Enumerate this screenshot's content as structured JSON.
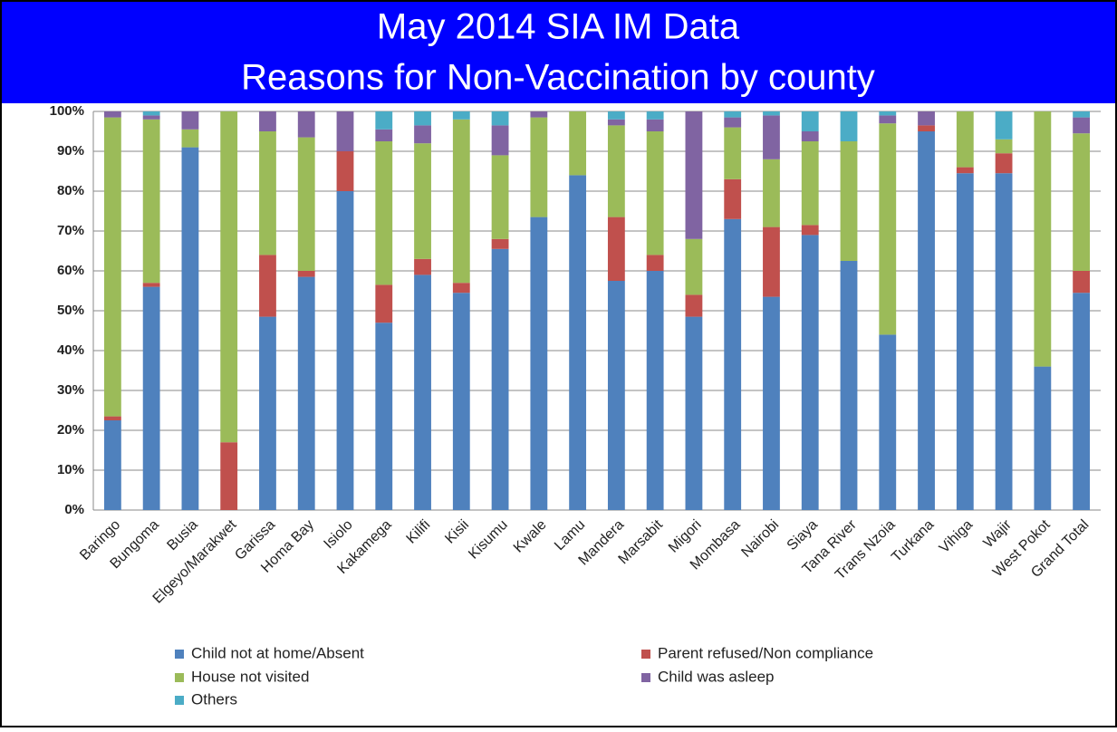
{
  "chart_data": {
    "type": "stacked_bar",
    "title": "May 2014 SIA IM Data",
    "subtitle": "Reasons for Non-Vaccination by county",
    "categories": [
      "Baringo",
      "Bungoma",
      "Busia",
      "Elgeyo/Marakwet",
      "Garissa",
      "Homa Bay",
      "Isiolo",
      "Kakamega",
      "Kilifi",
      "Kisii",
      "Kisumu",
      "Kwale",
      "Lamu",
      "Mandera",
      "Marsabit",
      "Migori",
      "Mombasa",
      "Nairobi",
      "Siaya",
      "Tana River",
      "Trans Nzoia",
      "Turkana",
      "Vihiga",
      "Wajir",
      "West Pokot",
      "Grand Total"
    ],
    "series": [
      {
        "name": "Child not at home/Absent",
        "color": "#4f81bd",
        "values": [
          22.5,
          56,
          91,
          0,
          48.5,
          58.5,
          80,
          47,
          59,
          54.5,
          65.5,
          73.5,
          84,
          57.5,
          60,
          48.5,
          73,
          53.5,
          69,
          62.5,
          44,
          95,
          84.5,
          84.5,
          36,
          54.5
        ]
      },
      {
        "name": "Parent refused/Non compliance",
        "color": "#c0504d",
        "values": [
          1,
          1,
          0,
          17,
          15.5,
          1.5,
          10,
          9.5,
          4,
          2.5,
          2.5,
          0,
          0,
          16,
          4,
          5.5,
          10,
          17.5,
          2.5,
          0,
          0,
          1.5,
          1.5,
          5,
          0,
          5.5
        ]
      },
      {
        "name": "House not visited",
        "color": "#9bbb59",
        "values": [
          75,
          41,
          4.5,
          83,
          31,
          33.5,
          0,
          36,
          29,
          41,
          21,
          25,
          16,
          23,
          31,
          14,
          13,
          17,
          21,
          30,
          53,
          0,
          14,
          3.5,
          64,
          34.5
        ]
      },
      {
        "name": "Child was asleep",
        "color": "#8064a2",
        "values": [
          1.5,
          1,
          4.5,
          0,
          5,
          6.5,
          10,
          3,
          4.5,
          0,
          7.5,
          1.5,
          0,
          1.5,
          3,
          32,
          2.5,
          11,
          2.5,
          0,
          2,
          3.5,
          0,
          0,
          0,
          4
        ]
      },
      {
        "name": "Others",
        "color": "#4bacc6",
        "values": [
          0,
          1,
          0,
          0,
          0,
          0,
          0,
          4.5,
          3.5,
          2,
          3.5,
          0,
          0,
          2,
          2,
          0,
          1.5,
          1,
          5,
          7.5,
          1,
          0,
          0,
          7,
          0,
          1.5
        ]
      }
    ],
    "ylim": [
      0,
      100
    ],
    "yticks": [
      {
        "value": 0,
        "label": "0%"
      },
      {
        "value": 10,
        "label": "10%"
      },
      {
        "value": 20,
        "label": "20%"
      },
      {
        "value": 30,
        "label": "30%"
      },
      {
        "value": 40,
        "label": "40%"
      },
      {
        "value": 50,
        "label": "50%"
      },
      {
        "value": 60,
        "label": "60%"
      },
      {
        "value": 70,
        "label": "70%"
      },
      {
        "value": 80,
        "label": "80%"
      },
      {
        "value": 90,
        "label": "90%"
      },
      {
        "value": 100,
        "label": "100%"
      }
    ],
    "grid": true
  }
}
